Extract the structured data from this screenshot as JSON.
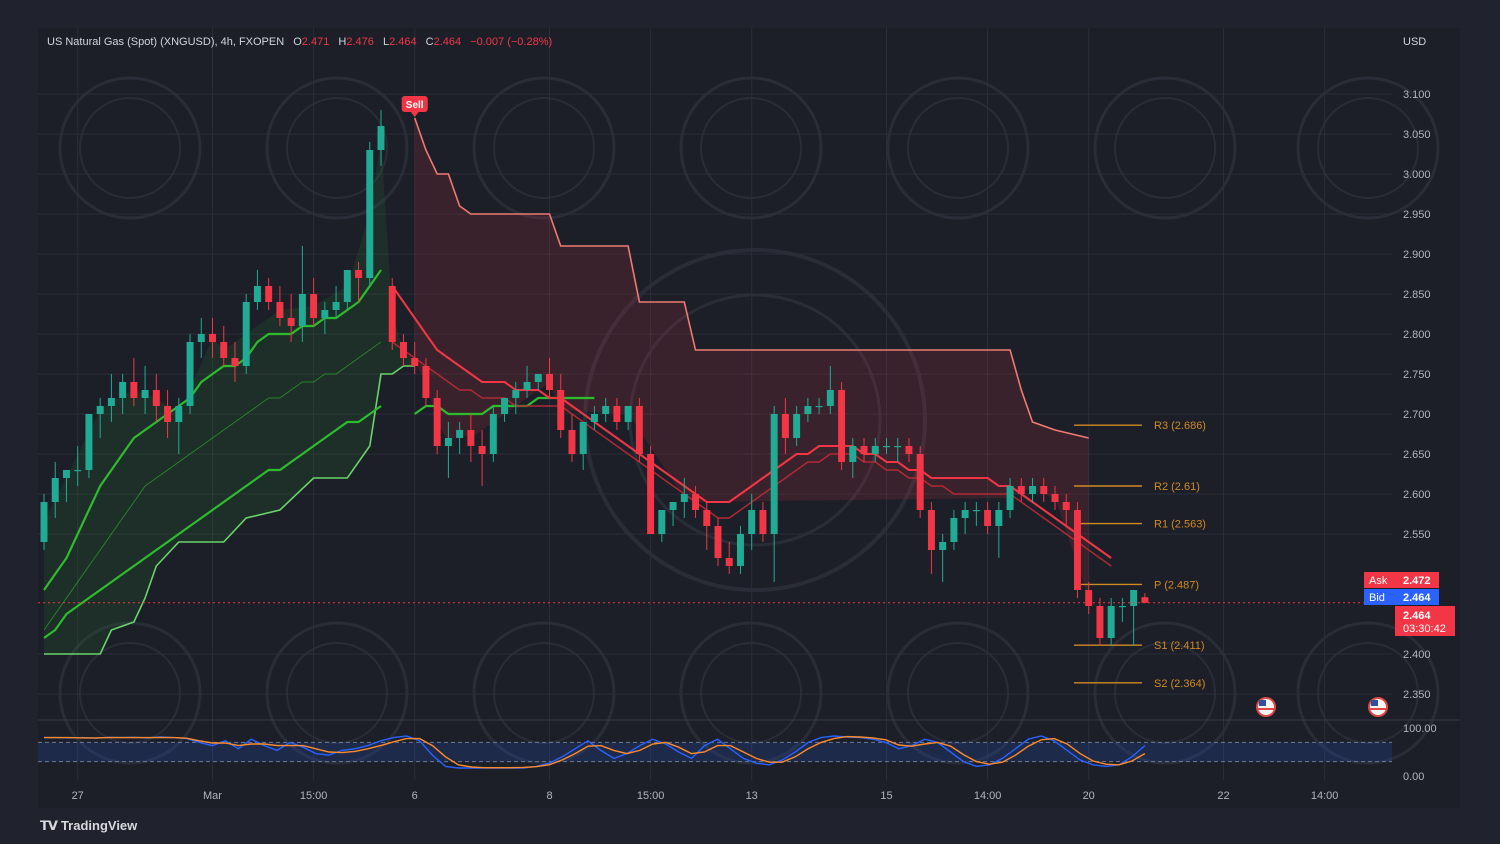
{
  "header": {
    "symbol": "US Natural Gas (Spot) (XNGUSD), 4h, FXOPEN",
    "o_label": "O",
    "o_value": "2.471",
    "h_label": "H",
    "h_value": "2.476",
    "l_label": "L",
    "l_value": "2.464",
    "c_label": "C",
    "c_value": "2.464",
    "change": "−0.007 (−0.28%)"
  },
  "currency": "USD",
  "colors": {
    "background": "#20232d",
    "bull": "#22ab94",
    "bear": "#f23645",
    "ema": "#2ebc2e",
    "supertrend_up": "#6ad46a",
    "supertrend_down": "#f07a70",
    "pivot": "#d08a22",
    "stoch_k": "#2962ff",
    "stoch_d": "#ff8a2a"
  },
  "sell_label": "Sell",
  "ask": {
    "label": "Ask",
    "value": "2.472"
  },
  "bid": {
    "label": "Bid",
    "value": "2.464"
  },
  "last_price": {
    "value": "2.464",
    "countdown": "03:30:42"
  },
  "logo_text": "TradingView",
  "chart_data": {
    "type": "candlestick",
    "ylim": [
      2.33,
      3.12
    ],
    "y_ticks": [
      "3.100",
      "3.050",
      "3.000",
      "2.950",
      "2.900",
      "2.850",
      "2.800",
      "2.750",
      "2.700",
      "2.650",
      "2.600",
      "2.550",
      "2.400",
      "2.350"
    ],
    "x_ticks": [
      {
        "label": "27",
        "i": 3
      },
      {
        "label": "Mar",
        "i": 15
      },
      {
        "label": "15:00",
        "i": 24
      },
      {
        "label": "6",
        "i": 33
      },
      {
        "label": "8",
        "i": 45
      },
      {
        "label": "15:00",
        "i": 54
      },
      {
        "label": "13",
        "i": 63
      },
      {
        "label": "15",
        "i": 75
      },
      {
        "label": "14:00",
        "i": 84
      },
      {
        "label": "20",
        "i": 93
      },
      {
        "label": "22",
        "i": 105
      },
      {
        "label": "14:00",
        "i": 114
      }
    ],
    "x_range": [
      0,
      120
    ],
    "candles": [
      [
        2.54,
        2.6,
        2.53,
        2.59
      ],
      [
        2.59,
        2.64,
        2.57,
        2.62
      ],
      [
        2.62,
        2.63,
        2.59,
        2.63
      ],
      [
        2.63,
        2.66,
        2.61,
        2.63
      ],
      [
        2.63,
        2.7,
        2.62,
        2.7
      ],
      [
        2.7,
        2.72,
        2.67,
        2.71
      ],
      [
        2.71,
        2.75,
        2.69,
        2.72
      ],
      [
        2.72,
        2.75,
        2.7,
        2.74
      ],
      [
        2.74,
        2.77,
        2.71,
        2.72
      ],
      [
        2.72,
        2.76,
        2.7,
        2.73
      ],
      [
        2.73,
        2.75,
        2.69,
        2.71
      ],
      [
        2.71,
        2.73,
        2.67,
        2.69
      ],
      [
        2.69,
        2.72,
        2.65,
        2.71
      ],
      [
        2.71,
        2.8,
        2.7,
        2.79
      ],
      [
        2.79,
        2.82,
        2.77,
        2.8
      ],
      [
        2.8,
        2.82,
        2.77,
        2.79
      ],
      [
        2.79,
        2.81,
        2.76,
        2.77
      ],
      [
        2.77,
        2.79,
        2.74,
        2.76
      ],
      [
        2.76,
        2.85,
        2.75,
        2.84
      ],
      [
        2.84,
        2.88,
        2.83,
        2.86
      ],
      [
        2.86,
        2.87,
        2.83,
        2.84
      ],
      [
        2.84,
        2.86,
        2.81,
        2.82
      ],
      [
        2.82,
        2.85,
        2.79,
        2.81
      ],
      [
        2.81,
        2.91,
        2.79,
        2.85
      ],
      [
        2.85,
        2.87,
        2.81,
        2.82
      ],
      [
        2.82,
        2.84,
        2.8,
        2.83
      ],
      [
        2.83,
        2.86,
        2.82,
        2.84
      ],
      [
        2.84,
        2.88,
        2.83,
        2.88
      ],
      [
        2.88,
        2.89,
        2.84,
        2.87
      ],
      [
        2.87,
        3.04,
        2.86,
        3.03
      ],
      [
        3.03,
        3.08,
        3.01,
        3.06
      ],
      [
        2.86,
        2.87,
        2.78,
        2.79
      ],
      [
        2.79,
        2.8,
        2.76,
        2.77
      ],
      [
        2.77,
        2.79,
        2.75,
        2.76
      ],
      [
        2.76,
        2.77,
        2.71,
        2.72
      ],
      [
        2.72,
        2.73,
        2.65,
        2.66
      ],
      [
        2.66,
        2.69,
        2.62,
        2.67
      ],
      [
        2.67,
        2.69,
        2.65,
        2.68
      ],
      [
        2.68,
        2.7,
        2.64,
        2.66
      ],
      [
        2.66,
        2.68,
        2.61,
        2.65
      ],
      [
        2.65,
        2.71,
        2.64,
        2.7
      ],
      [
        2.7,
        2.72,
        2.69,
        2.72
      ],
      [
        2.72,
        2.74,
        2.7,
        2.73
      ],
      [
        2.73,
        2.76,
        2.72,
        2.74
      ],
      [
        2.74,
        2.75,
        2.73,
        2.75
      ],
      [
        2.75,
        2.77,
        2.72,
        2.73
      ],
      [
        2.73,
        2.75,
        2.67,
        2.68
      ],
      [
        2.68,
        2.7,
        2.64,
        2.65
      ],
      [
        2.65,
        2.69,
        2.63,
        2.69
      ],
      [
        2.69,
        2.71,
        2.68,
        2.7
      ],
      [
        2.7,
        2.72,
        2.69,
        2.71
      ],
      [
        2.71,
        2.72,
        2.68,
        2.69
      ],
      [
        2.69,
        2.71,
        2.68,
        2.71
      ],
      [
        2.71,
        2.72,
        2.64,
        2.65
      ],
      [
        2.65,
        2.66,
        2.55,
        2.55
      ],
      [
        2.55,
        2.58,
        2.54,
        2.58
      ],
      [
        2.58,
        2.59,
        2.56,
        2.59
      ],
      [
        2.59,
        2.62,
        2.57,
        2.6
      ],
      [
        2.6,
        2.61,
        2.57,
        2.58
      ],
      [
        2.58,
        2.59,
        2.53,
        2.56
      ],
      [
        2.56,
        2.57,
        2.51,
        2.52
      ],
      [
        2.52,
        2.54,
        2.5,
        2.51
      ],
      [
        2.51,
        2.56,
        2.5,
        2.55
      ],
      [
        2.55,
        2.6,
        2.53,
        2.58
      ],
      [
        2.58,
        2.59,
        2.54,
        2.55
      ],
      [
        2.55,
        2.71,
        2.49,
        2.7
      ],
      [
        2.7,
        2.72,
        2.65,
        2.67
      ],
      [
        2.67,
        2.71,
        2.66,
        2.7
      ],
      [
        2.7,
        2.72,
        2.69,
        2.71
      ],
      [
        2.71,
        2.72,
        2.7,
        2.71
      ],
      [
        2.71,
        2.76,
        2.7,
        2.73
      ],
      [
        2.73,
        2.74,
        2.63,
        2.64
      ],
      [
        2.64,
        2.67,
        2.62,
        2.66
      ],
      [
        2.66,
        2.67,
        2.64,
        2.65
      ],
      [
        2.65,
        2.67,
        2.64,
        2.66
      ],
      [
        2.66,
        2.67,
        2.65,
        2.66
      ],
      [
        2.66,
        2.67,
        2.64,
        2.66
      ],
      [
        2.66,
        2.67,
        2.64,
        2.65
      ],
      [
        2.65,
        2.66,
        2.57,
        2.58
      ],
      [
        2.58,
        2.59,
        2.5,
        2.53
      ],
      [
        2.53,
        2.55,
        2.49,
        2.54
      ],
      [
        2.54,
        2.58,
        2.53,
        2.57
      ],
      [
        2.57,
        2.59,
        2.55,
        2.58
      ],
      [
        2.58,
        2.59,
        2.56,
        2.58
      ],
      [
        2.58,
        2.59,
        2.55,
        2.56
      ],
      [
        2.56,
        2.59,
        2.52,
        2.58
      ],
      [
        2.58,
        2.62,
        2.57,
        2.61
      ],
      [
        2.61,
        2.62,
        2.59,
        2.6
      ],
      [
        2.6,
        2.62,
        2.59,
        2.61
      ],
      [
        2.61,
        2.62,
        2.59,
        2.6
      ],
      [
        2.6,
        2.61,
        2.58,
        2.59
      ],
      [
        2.59,
        2.6,
        2.56,
        2.58
      ],
      [
        2.58,
        2.59,
        2.47,
        2.48
      ],
      [
        2.48,
        2.49,
        2.45,
        2.46
      ],
      [
        2.46,
        2.47,
        2.41,
        2.42
      ],
      [
        2.42,
        2.47,
        2.41,
        2.46
      ],
      [
        2.46,
        2.47,
        2.44,
        2.46
      ],
      [
        2.46,
        2.48,
        2.41,
        2.48
      ],
      [
        2.471,
        2.476,
        2.464,
        2.464
      ]
    ],
    "ema_fast": [
      2.48,
      2.5,
      2.52,
      2.55,
      2.58,
      2.61,
      2.63,
      2.65,
      2.67,
      2.68,
      2.69,
      2.7,
      2.71,
      2.72,
      2.74,
      2.75,
      2.76,
      2.76,
      2.77,
      2.79,
      2.8,
      2.8,
      2.8,
      2.81,
      2.81,
      2.82,
      2.82,
      2.83,
      2.84,
      2.86,
      2.88
    ],
    "ema_mid": [
      2.43,
      2.45,
      2.47,
      2.49,
      2.51,
      2.53,
      2.55,
      2.57,
      2.59,
      2.61,
      2.62,
      2.63,
      2.64,
      2.65,
      2.66,
      2.67,
      2.68,
      2.69,
      2.7,
      2.71,
      2.72,
      2.72,
      2.73,
      2.74,
      2.74,
      2.75,
      2.75,
      2.76,
      2.77,
      2.78,
      2.79
    ],
    "ema_slow": [
      2.42,
      2.43,
      2.45,
      2.46,
      2.47,
      2.48,
      2.49,
      2.5,
      2.51,
      2.52,
      2.53,
      2.54,
      2.55,
      2.56,
      2.57,
      2.58,
      2.59,
      2.6,
      2.61,
      2.62,
      2.63,
      2.63,
      2.64,
      2.65,
      2.66,
      2.67,
      2.68,
      2.69,
      2.69,
      2.7,
      2.71
    ],
    "ema_green_mid": [
      2.7,
      2.71,
      2.71,
      2.7,
      2.7,
      2.7,
      2.7,
      2.71,
      2.71,
      2.71,
      2.71,
      2.72,
      2.72,
      2.72,
      2.72,
      2.72,
      2.72
    ],
    "ema_red_upper": [
      2.86,
      2.84,
      2.82,
      2.8,
      2.78,
      2.77,
      2.76,
      2.75,
      2.74,
      2.74,
      2.74,
      2.73,
      2.73,
      2.73,
      2.72,
      2.72,
      2.71,
      2.7,
      2.69,
      2.68,
      2.67,
      2.66,
      2.65,
      2.64,
      2.63,
      2.62,
      2.61,
      2.6,
      2.59,
      2.59,
      2.59,
      2.6,
      2.61,
      2.62,
      2.63,
      2.64,
      2.65,
      2.65,
      2.66,
      2.66,
      2.66,
      2.66,
      2.65,
      2.65,
      2.64,
      2.64,
      2.63,
      2.63,
      2.62,
      2.62,
      2.62,
      2.62,
      2.62,
      2.62,
      2.61,
      2.61,
      2.6,
      2.59,
      2.58,
      2.57,
      2.56,
      2.55,
      2.54,
      2.53,
      2.52
    ],
    "ema_red_lower": [
      2.79,
      2.78,
      2.77,
      2.76,
      2.75,
      2.74,
      2.73,
      2.73,
      2.72,
      2.72,
      2.72,
      2.71,
      2.71,
      2.71,
      2.71,
      2.71,
      2.7,
      2.69,
      2.68,
      2.67,
      2.66,
      2.65,
      2.64,
      2.63,
      2.62,
      2.61,
      2.6,
      2.59,
      2.58,
      2.57,
      2.57,
      2.58,
      2.59,
      2.6,
      2.61,
      2.62,
      2.63,
      2.64,
      2.64,
      2.65,
      2.65,
      2.65,
      2.64,
      2.64,
      2.63,
      2.63,
      2.62,
      2.62,
      2.61,
      2.61,
      2.6,
      2.6,
      2.6,
      2.6,
      2.6,
      2.6,
      2.59,
      2.58,
      2.57,
      2.56,
      2.55,
      2.54,
      2.53,
      2.52,
      2.51
    ],
    "supertrend_up": [
      [
        0,
        2.4
      ],
      [
        5,
        2.4
      ],
      [
        6,
        2.43
      ],
      [
        8,
        2.44
      ],
      [
        9,
        2.47
      ],
      [
        10,
        2.51
      ],
      [
        12,
        2.54
      ],
      [
        15,
        2.54
      ],
      [
        16,
        2.54
      ],
      [
        18,
        2.57
      ],
      [
        21,
        2.58
      ],
      [
        24,
        2.62
      ],
      [
        27,
        2.62
      ],
      [
        29,
        2.66
      ],
      [
        30,
        2.75
      ],
      [
        31,
        2.75
      ],
      [
        32,
        2.76
      ],
      [
        33,
        2.76
      ]
    ],
    "supertrend_down": [
      [
        33,
        3.07
      ],
      [
        34,
        3.03
      ],
      [
        35,
        3.0
      ],
      [
        36,
        3.0
      ],
      [
        37,
        2.96
      ],
      [
        38,
        2.95
      ],
      [
        45,
        2.95
      ],
      [
        46,
        2.91
      ],
      [
        52,
        2.91
      ],
      [
        53,
        2.84
      ],
      [
        57,
        2.84
      ],
      [
        58,
        2.78
      ],
      [
        86,
        2.78
      ],
      [
        87,
        2.73
      ],
      [
        88,
        2.69
      ],
      [
        90,
        2.68
      ],
      [
        93,
        2.67
      ]
    ],
    "pivots": [
      {
        "label": "R3 (2.686)",
        "value": 2.686
      },
      {
        "label": "R2 (2.61)",
        "value": 2.61
      },
      {
        "label": "R1 (2.563)",
        "value": 2.563
      },
      {
        "label": "P (2.487)",
        "value": 2.487
      },
      {
        "label": "S1 (2.411)",
        "value": 2.411
      },
      {
        "label": "S2 (2.364)",
        "value": 2.364
      }
    ],
    "stoch": {
      "ylim": [
        0,
        100
      ],
      "y_ticks": [
        "100.00",
        "0.00"
      ],
      "band": [
        20,
        80
      ],
      "k": [
        95,
        95,
        94,
        95,
        93,
        96,
        95,
        96,
        94,
        97,
        95,
        92,
        80,
        70,
        85,
        60,
        90,
        70,
        55,
        80,
        65,
        45,
        40,
        55,
        60,
        70,
        85,
        95,
        100,
        85,
        40,
        5,
        0,
        0,
        0,
        0,
        0,
        0,
        5,
        15,
        35,
        60,
        85,
        55,
        30,
        45,
        70,
        90,
        75,
        50,
        30,
        70,
        90,
        60,
        30,
        15,
        10,
        25,
        50,
        80,
        95,
        100,
        97,
        95,
        90,
        80,
        60,
        70,
        90,
        80,
        50,
        20,
        5,
        10,
        30,
        60,
        90,
        100,
        85,
        55,
        25,
        10,
        5,
        10,
        35,
        70
      ],
      "d": [
        95,
        95,
        95,
        94,
        94,
        95,
        95,
        95,
        95,
        95,
        95,
        93,
        85,
        78,
        78,
        70,
        75,
        75,
        70,
        70,
        70,
        60,
        50,
        48,
        52,
        60,
        70,
        82,
        92,
        92,
        70,
        35,
        10,
        3,
        1,
        1,
        1,
        2,
        4,
        10,
        25,
        45,
        68,
        70,
        55,
        45,
        55,
        75,
        80,
        65,
        45,
        50,
        70,
        70,
        50,
        30,
        18,
        18,
        35,
        60,
        80,
        92,
        98,
        97,
        94,
        88,
        72,
        68,
        75,
        80,
        68,
        42,
        20,
        12,
        18,
        40,
        68,
        88,
        92,
        75,
        45,
        22,
        12,
        10,
        22,
        45
      ]
    }
  }
}
